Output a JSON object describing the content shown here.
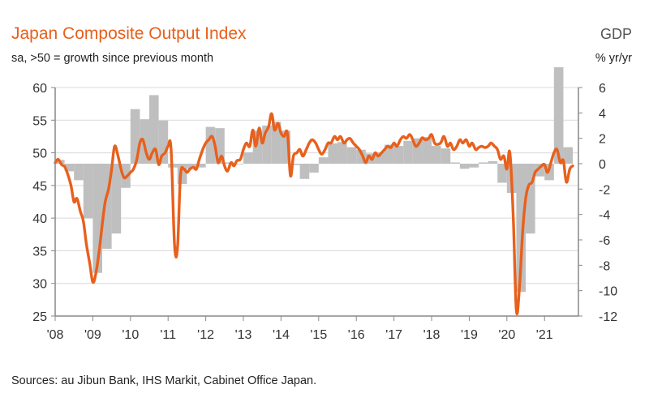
{
  "chart_data": {
    "type": "bar+line",
    "title": "Japan Composite Output Index",
    "subtitle": "sa, >50 = growth since previous month",
    "right_axis_title": "GDP",
    "right_axis_unit": "% yr/yr",
    "source": "Sources: au Jibun Bank, IHS Markit, Cabinet Office Japan.",
    "left_ylim": [
      25,
      60
    ],
    "left_ticks": [
      "60",
      "55",
      "50",
      "45",
      "40",
      "35",
      "30",
      "25"
    ],
    "right_ylim": [
      -12,
      6
    ],
    "right_ticks": [
      "6",
      "4",
      "2",
      "0",
      "-2",
      "-4",
      "-6",
      "-8",
      "-10",
      "-12"
    ],
    "x_ticks": [
      "'08",
      "'09",
      "'10",
      "'11",
      "'12",
      "'13",
      "'14",
      "'15",
      "'16",
      "'17",
      "'18",
      "'19",
      "'20",
      "'21"
    ],
    "x_range": [
      2008.0,
      2021.9
    ],
    "gdp_series": {
      "name": "GDP % yr/yr",
      "color": "#bfbfbf",
      "axis": "right",
      "quarters": [
        "2008Q1",
        "2008Q2",
        "2008Q3",
        "2008Q4",
        "2009Q1",
        "2009Q2",
        "2009Q3",
        "2009Q4",
        "2010Q1",
        "2010Q2",
        "2010Q3",
        "2010Q4",
        "2011Q1",
        "2011Q2",
        "2011Q3",
        "2011Q4",
        "2012Q1",
        "2012Q2",
        "2012Q3",
        "2012Q4",
        "2013Q1",
        "2013Q2",
        "2013Q3",
        "2013Q4",
        "2014Q1",
        "2014Q2",
        "2014Q3",
        "2014Q4",
        "2015Q1",
        "2015Q2",
        "2015Q3",
        "2015Q4",
        "2016Q1",
        "2016Q2",
        "2016Q3",
        "2016Q4",
        "2017Q1",
        "2017Q2",
        "2017Q3",
        "2017Q4",
        "2018Q1",
        "2018Q2",
        "2018Q3",
        "2018Q4",
        "2019Q1",
        "2019Q2",
        "2019Q3",
        "2019Q4",
        "2020Q1",
        "2020Q2",
        "2020Q3",
        "2020Q4",
        "2021Q1",
        "2021Q2",
        "2021Q3"
      ],
      "values": [
        0.3,
        -0.6,
        -1.3,
        -4.3,
        -8.6,
        -6.7,
        -5.5,
        -1.9,
        4.3,
        3.5,
        5.4,
        3.4,
        -0.3,
        -1.6,
        -0.4,
        -0.3,
        2.9,
        2.8,
        0.1,
        0.0,
        0.9,
        2.6,
        3.0,
        3.3,
        2.6,
        -0.1,
        -1.2,
        -0.7,
        0.5,
        1.6,
        1.7,
        1.3,
        1.1,
        0.8,
        0.9,
        1.5,
        1.4,
        1.8,
        2.0,
        2.1,
        1.4,
        1.2,
        0.1,
        -0.4,
        -0.3,
        0.1,
        0.2,
        -1.5,
        -2.3,
        -10.1,
        -5.5,
        -1.0,
        -1.3,
        7.6,
        1.3
      ]
    },
    "pmi_series": {
      "name": "Japan Composite Output Index",
      "color": "#e8601c",
      "axis": "left",
      "points": [
        [
          2008.0,
          48.5
        ],
        [
          2008.08,
          49.0
        ],
        [
          2008.17,
          48.2
        ],
        [
          2008.25,
          47.9
        ],
        [
          2008.33,
          46.8
        ],
        [
          2008.42,
          45.0
        ],
        [
          2008.5,
          42.5
        ],
        [
          2008.58,
          43.0
        ],
        [
          2008.67,
          41.0
        ],
        [
          2008.75,
          39.5
        ],
        [
          2008.83,
          36.0
        ],
        [
          2008.92,
          33.0
        ],
        [
          2009.0,
          30.2
        ],
        [
          2009.08,
          31.5
        ],
        [
          2009.17,
          35.0
        ],
        [
          2009.25,
          39.0
        ],
        [
          2009.33,
          42.5
        ],
        [
          2009.42,
          44.5
        ],
        [
          2009.5,
          47.5
        ],
        [
          2009.58,
          51.0
        ],
        [
          2009.67,
          49.5
        ],
        [
          2009.75,
          47.5
        ],
        [
          2009.83,
          46.2
        ],
        [
          2009.92,
          46.5
        ],
        [
          2010.0,
          47.0
        ],
        [
          2010.08,
          47.5
        ],
        [
          2010.17,
          49.0
        ],
        [
          2010.25,
          51.5
        ],
        [
          2010.33,
          52.0
        ],
        [
          2010.42,
          50.0
        ],
        [
          2010.5,
          49.0
        ],
        [
          2010.58,
          50.0
        ],
        [
          2010.67,
          50.5
        ],
        [
          2010.75,
          48.2
        ],
        [
          2010.83,
          49.5
        ],
        [
          2010.92,
          50.0
        ],
        [
          2011.0,
          51.0
        ],
        [
          2011.08,
          50.5
        ],
        [
          2011.17,
          36.0
        ],
        [
          2011.25,
          35.5
        ],
        [
          2011.33,
          46.5
        ],
        [
          2011.42,
          47.5
        ],
        [
          2011.5,
          47.0
        ],
        [
          2011.58,
          47.5
        ],
        [
          2011.67,
          47.8
        ],
        [
          2011.75,
          47.5
        ],
        [
          2011.83,
          49.0
        ],
        [
          2011.92,
          50.5
        ],
        [
          2012.0,
          51.5
        ],
        [
          2012.08,
          52.0
        ],
        [
          2012.17,
          52.5
        ],
        [
          2012.25,
          51.0
        ],
        [
          2012.33,
          48.5
        ],
        [
          2012.42,
          49.5
        ],
        [
          2012.5,
          48.0
        ],
        [
          2012.58,
          47.2
        ],
        [
          2012.67,
          48.5
        ],
        [
          2012.75,
          48.0
        ],
        [
          2012.83,
          48.8
        ],
        [
          2012.92,
          49.0
        ],
        [
          2013.0,
          50.5
        ],
        [
          2013.08,
          51.5
        ],
        [
          2013.17,
          51.0
        ],
        [
          2013.25,
          53.5
        ],
        [
          2013.33,
          51.0
        ],
        [
          2013.42,
          53.8
        ],
        [
          2013.5,
          51.5
        ],
        [
          2013.58,
          53.0
        ],
        [
          2013.67,
          54.0
        ],
        [
          2013.75,
          56.0
        ],
        [
          2013.83,
          53.5
        ],
        [
          2013.92,
          54.5
        ],
        [
          2014.0,
          53.0
        ],
        [
          2014.08,
          52.5
        ],
        [
          2014.17,
          53.0
        ],
        [
          2014.25,
          46.5
        ],
        [
          2014.33,
          49.5
        ],
        [
          2014.42,
          50.0
        ],
        [
          2014.5,
          50.5
        ],
        [
          2014.58,
          49.5
        ],
        [
          2014.67,
          50.5
        ],
        [
          2014.75,
          51.5
        ],
        [
          2014.83,
          52.0
        ],
        [
          2014.92,
          51.5
        ],
        [
          2015.0,
          50.5
        ],
        [
          2015.08,
          49.8
        ],
        [
          2015.17,
          50.5
        ],
        [
          2015.25,
          51.5
        ],
        [
          2015.33,
          51.5
        ],
        [
          2015.42,
          52.5
        ],
        [
          2015.5,
          52.0
        ],
        [
          2015.58,
          52.5
        ],
        [
          2015.67,
          51.5
        ],
        [
          2015.75,
          52.0
        ],
        [
          2015.83,
          52.2
        ],
        [
          2015.92,
          51.5
        ],
        [
          2016.0,
          51.0
        ],
        [
          2016.08,
          50.5
        ],
        [
          2016.17,
          49.5
        ],
        [
          2016.25,
          48.5
        ],
        [
          2016.33,
          49.5
        ],
        [
          2016.42,
          49.0
        ],
        [
          2016.5,
          50.0
        ],
        [
          2016.58,
          49.5
        ],
        [
          2016.67,
          50.0
        ],
        [
          2016.75,
          50.5
        ],
        [
          2016.83,
          51.0
        ],
        [
          2016.92,
          50.8
        ],
        [
          2017.0,
          51.5
        ],
        [
          2017.08,
          51.0
        ],
        [
          2017.17,
          52.0
        ],
        [
          2017.25,
          52.5
        ],
        [
          2017.33,
          52.2
        ],
        [
          2017.42,
          52.8
        ],
        [
          2017.5,
          52.0
        ],
        [
          2017.58,
          51.0
        ],
        [
          2017.67,
          51.5
        ],
        [
          2017.75,
          52.3
        ],
        [
          2017.83,
          52.0
        ],
        [
          2017.92,
          52.2
        ],
        [
          2018.0,
          52.8
        ],
        [
          2018.08,
          51.5
        ],
        [
          2018.17,
          51.3
        ],
        [
          2018.25,
          51.6
        ],
        [
          2018.33,
          52.5
        ],
        [
          2018.42,
          51.0
        ],
        [
          2018.5,
          51.5
        ],
        [
          2018.58,
          50.5
        ],
        [
          2018.67,
          51.0
        ],
        [
          2018.75,
          52.0
        ],
        [
          2018.83,
          51.5
        ],
        [
          2018.92,
          52.0
        ],
        [
          2019.0,
          51.0
        ],
        [
          2019.08,
          51.5
        ],
        [
          2019.17,
          50.5
        ],
        [
          2019.25,
          50.8
        ],
        [
          2019.33,
          51.0
        ],
        [
          2019.42,
          50.8
        ],
        [
          2019.5,
          51.0
        ],
        [
          2019.58,
          51.5
        ],
        [
          2019.67,
          51.0
        ],
        [
          2019.75,
          50.5
        ],
        [
          2019.83,
          49.0
        ],
        [
          2019.92,
          49.5
        ],
        [
          2020.0,
          47.5
        ],
        [
          2020.08,
          50.0
        ],
        [
          2020.17,
          40.0
        ],
        [
          2020.25,
          26.0
        ],
        [
          2020.33,
          29.0
        ],
        [
          2020.42,
          38.0
        ],
        [
          2020.5,
          43.0
        ],
        [
          2020.58,
          45.0
        ],
        [
          2020.67,
          45.5
        ],
        [
          2020.75,
          47.0
        ],
        [
          2020.83,
          47.5
        ],
        [
          2020.92,
          48.0
        ],
        [
          2021.0,
          48.2
        ],
        [
          2021.08,
          47.0
        ],
        [
          2021.17,
          48.5
        ],
        [
          2021.25,
          50.0
        ],
        [
          2021.33,
          50.5
        ],
        [
          2021.42,
          48.5
        ],
        [
          2021.5,
          48.8
        ],
        [
          2021.58,
          45.5
        ],
        [
          2021.67,
          47.5
        ],
        [
          2021.75,
          48.0
        ]
      ]
    }
  }
}
